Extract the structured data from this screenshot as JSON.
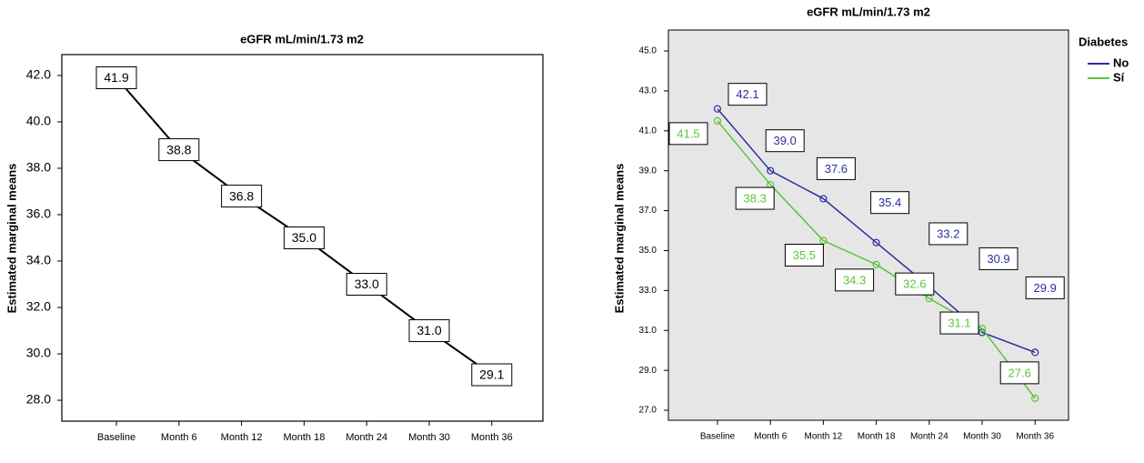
{
  "chart_data": [
    {
      "type": "line",
      "title": "eGFR mL/min/1.73 m2",
      "y_label": "Estimated marginal means",
      "categories": [
        "Baseline",
        "Month 6",
        "Month 12",
        "Month 18",
        "Month 24",
        "Month 30",
        "Month 36"
      ],
      "values": [
        41.9,
        38.8,
        36.8,
        35.0,
        33.0,
        31.0,
        29.1
      ],
      "value_labels": [
        "41.9",
        "38.8",
        "36.8",
        "35.0",
        "33.0",
        "31.0",
        "29.1"
      ],
      "color": "#000000",
      "ylim": [
        27.1,
        42.9
      ],
      "yticks": [
        {
          "value": 28,
          "label": "28.0"
        },
        {
          "value": 30,
          "label": "30.0"
        },
        {
          "value": 32,
          "label": "32.0"
        },
        {
          "value": 34,
          "label": "34.0"
        },
        {
          "value": 36,
          "label": "36.0"
        },
        {
          "value": 38,
          "label": "38.0"
        },
        {
          "value": 40,
          "label": "40.0"
        },
        {
          "value": 42,
          "label": "42.0"
        }
      ]
    },
    {
      "type": "line",
      "title": "eGFR mL/min/1.73 m2",
      "y_label": "Estimated marginal means",
      "categories": [
        "Baseline",
        "Month 6",
        "Month 12",
        "Month 18",
        "Month 24",
        "Month 30",
        "Month 36"
      ],
      "legend_title": "Diabetes",
      "legend": "right",
      "series": [
        {
          "name": "No",
          "color": "#2b2f9e",
          "values": [
            42.1,
            39.0,
            37.6,
            35.4,
            33.2,
            30.9,
            29.9
          ],
          "value_labels": [
            "42.1",
            "39.0",
            "37.6",
            "35.4",
            "33.2",
            "30.9",
            "29.9"
          ]
        },
        {
          "name": "Sí",
          "color": "#5cc43c",
          "values": [
            41.5,
            38.3,
            35.5,
            34.3,
            32.6,
            31.1,
            27.6
          ],
          "value_labels": [
            "41.5",
            "38.3",
            "35.5",
            "34.3",
            "32.6",
            "31.1",
            "27.6"
          ]
        }
      ],
      "ylim": [
        26.5,
        46.05
      ],
      "yticks": [
        {
          "value": 27,
          "label": "27.0"
        },
        {
          "value": 29,
          "label": "29.0"
        },
        {
          "value": 31,
          "label": "31.0"
        },
        {
          "value": 33,
          "label": "33.0"
        },
        {
          "value": 35,
          "label": "35.0"
        },
        {
          "value": 37,
          "label": "37.0"
        },
        {
          "value": 39,
          "label": "39.0"
        },
        {
          "value": 41,
          "label": "41.0"
        },
        {
          "value": 43,
          "label": "43.0"
        },
        {
          "value": 45,
          "label": "45.0"
        }
      ]
    }
  ]
}
